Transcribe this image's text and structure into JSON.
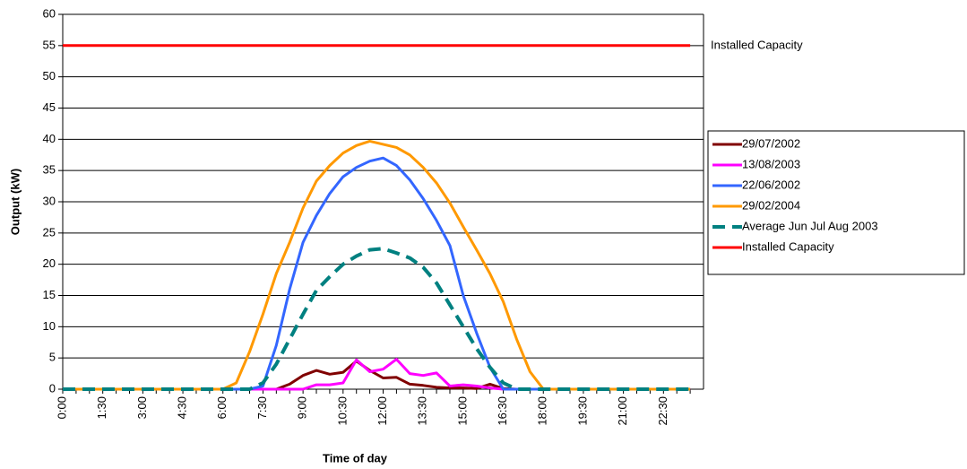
{
  "chart_data": {
    "type": "line",
    "x_label": "Time of day",
    "y_label": "Output (kW)",
    "categories": [
      "0:00",
      null,
      null,
      "1:30",
      null,
      null,
      "3:00",
      null,
      null,
      "4:30",
      null,
      null,
      "6:00",
      null,
      null,
      "7:30",
      null,
      null,
      "9:00",
      null,
      null,
      "10:30",
      null,
      null,
      "12:00",
      null,
      null,
      "13:30",
      null,
      null,
      "15:00",
      null,
      null,
      "16:30",
      null,
      null,
      "18:00",
      null,
      null,
      "19:30",
      null,
      null,
      "21:00",
      null,
      null,
      "22:30",
      null,
      null
    ],
    "ylim": [
      0,
      60
    ],
    "yticks": [
      0,
      5,
      10,
      15,
      20,
      25,
      30,
      35,
      40,
      45,
      50,
      55,
      60
    ],
    "grid": true,
    "legend": "right",
    "annotations": [
      {
        "text": "Installed Capacity",
        "y": 55
      }
    ],
    "series": [
      {
        "name": "29/07/2002",
        "color": "#800000",
        "values": [
          0,
          0,
          0,
          0,
          0,
          0,
          0,
          0,
          0,
          0,
          0,
          0,
          0,
          0,
          0,
          0,
          0,
          0.8,
          2.2,
          3,
          2.4,
          2.7,
          4.5,
          3,
          1.8,
          1.9,
          0.8,
          0.6,
          0.3,
          0.2,
          0.2,
          0.1,
          0.8,
          0.1,
          0,
          0,
          0,
          0,
          0,
          0,
          0,
          0,
          0,
          0,
          0,
          0,
          0,
          0
        ]
      },
      {
        "name": "13/08/2003",
        "color": "#ff00ff",
        "values": [
          0,
          0,
          0,
          0,
          0,
          0,
          0,
          0,
          0,
          0,
          0,
          0,
          0,
          0,
          0,
          0,
          0,
          0,
          0,
          0.7,
          0.7,
          1,
          4.7,
          2.8,
          3.2,
          4.8,
          2.5,
          2.2,
          2.6,
          0.5,
          0.7,
          0.5,
          0.2,
          0,
          0,
          0,
          0,
          0,
          0,
          0,
          0,
          0,
          0,
          0,
          0,
          0,
          0,
          0
        ]
      },
      {
        "name": "22/06/2002",
        "color": "#3366ff",
        "values": [
          0,
          0,
          0,
          0,
          0,
          0,
          0,
          0,
          0,
          0,
          0,
          0,
          0,
          0,
          0,
          0.5,
          7,
          16,
          23.5,
          27.8,
          31.3,
          34,
          35.5,
          36.5,
          37,
          35.8,
          33.5,
          30.5,
          27,
          23,
          15,
          9,
          3.5,
          0,
          0,
          0,
          0,
          0,
          0,
          0,
          0,
          0,
          0,
          0,
          0,
          0,
          0,
          0
        ]
      },
      {
        "name": "29/02/2004",
        "color": "#ff9900",
        "values": [
          0,
          0,
          0,
          0,
          0,
          0,
          0,
          0,
          0,
          0,
          0,
          0,
          0,
          1,
          6,
          12,
          18.5,
          23.5,
          29,
          33.3,
          35.8,
          37.8,
          39,
          39.7,
          39.2,
          38.7,
          37.5,
          35.5,
          33,
          29.8,
          26,
          22.3,
          18.5,
          14,
          8,
          2.8,
          0,
          0,
          0,
          0,
          0,
          0,
          0,
          0,
          0,
          0,
          0,
          0
        ]
      },
      {
        "name": "Average Jun Jul Aug 2003",
        "color": "#008080",
        "dashed": true,
        "values": [
          0,
          0,
          0,
          0,
          0,
          0,
          0,
          0,
          0,
          0,
          0,
          0,
          0,
          0,
          0,
          1,
          4,
          8,
          12,
          15.8,
          18,
          20,
          21.3,
          22.3,
          22.5,
          21.8,
          21,
          19.5,
          17,
          13.5,
          10,
          6.5,
          3.5,
          1,
          0,
          0,
          0,
          0,
          0,
          0,
          0,
          0,
          0,
          0,
          0,
          0,
          0,
          0
        ]
      },
      {
        "name": "Installed Capacity",
        "color": "#ff0000",
        "values": [
          55,
          55,
          55,
          55,
          55,
          55,
          55,
          55,
          55,
          55,
          55,
          55,
          55,
          55,
          55,
          55,
          55,
          55,
          55,
          55,
          55,
          55,
          55,
          55,
          55,
          55,
          55,
          55,
          55,
          55,
          55,
          55,
          55,
          55,
          55,
          55,
          55,
          55,
          55,
          55,
          55,
          55,
          55,
          55,
          55,
          55,
          55,
          55
        ]
      }
    ]
  }
}
